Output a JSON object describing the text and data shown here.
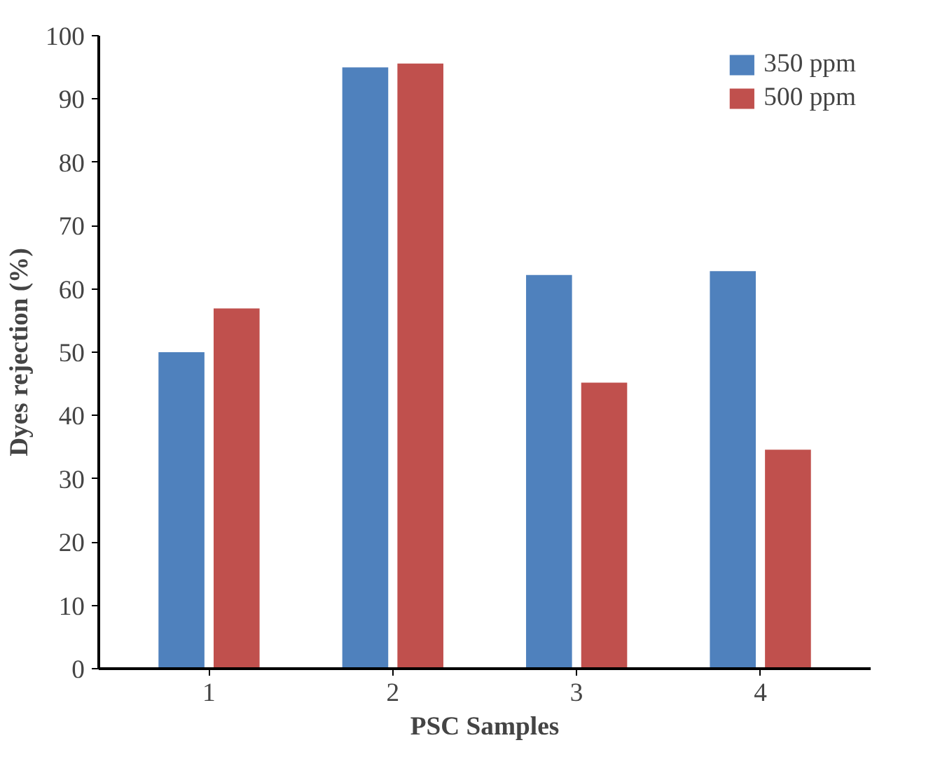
{
  "chart_data": {
    "type": "bar",
    "xlabel": "PSC Samples",
    "ylabel": "Dyes rejection (%)",
    "categories": [
      "1",
      "2",
      "3",
      "4"
    ],
    "series": [
      {
        "name": "350 ppm",
        "color": "#4f81bd",
        "values": [
          50,
          95,
          62.2,
          62.8
        ]
      },
      {
        "name": "500 ppm",
        "color": "#c0504d",
        "values": [
          56.9,
          95.6,
          45.2,
          34.6
        ]
      }
    ],
    "ylim": [
      0,
      100
    ],
    "yticks": [
      0,
      10,
      20,
      30,
      40,
      50,
      60,
      70,
      80,
      90,
      100
    ],
    "grid": false,
    "legend": "top right"
  }
}
